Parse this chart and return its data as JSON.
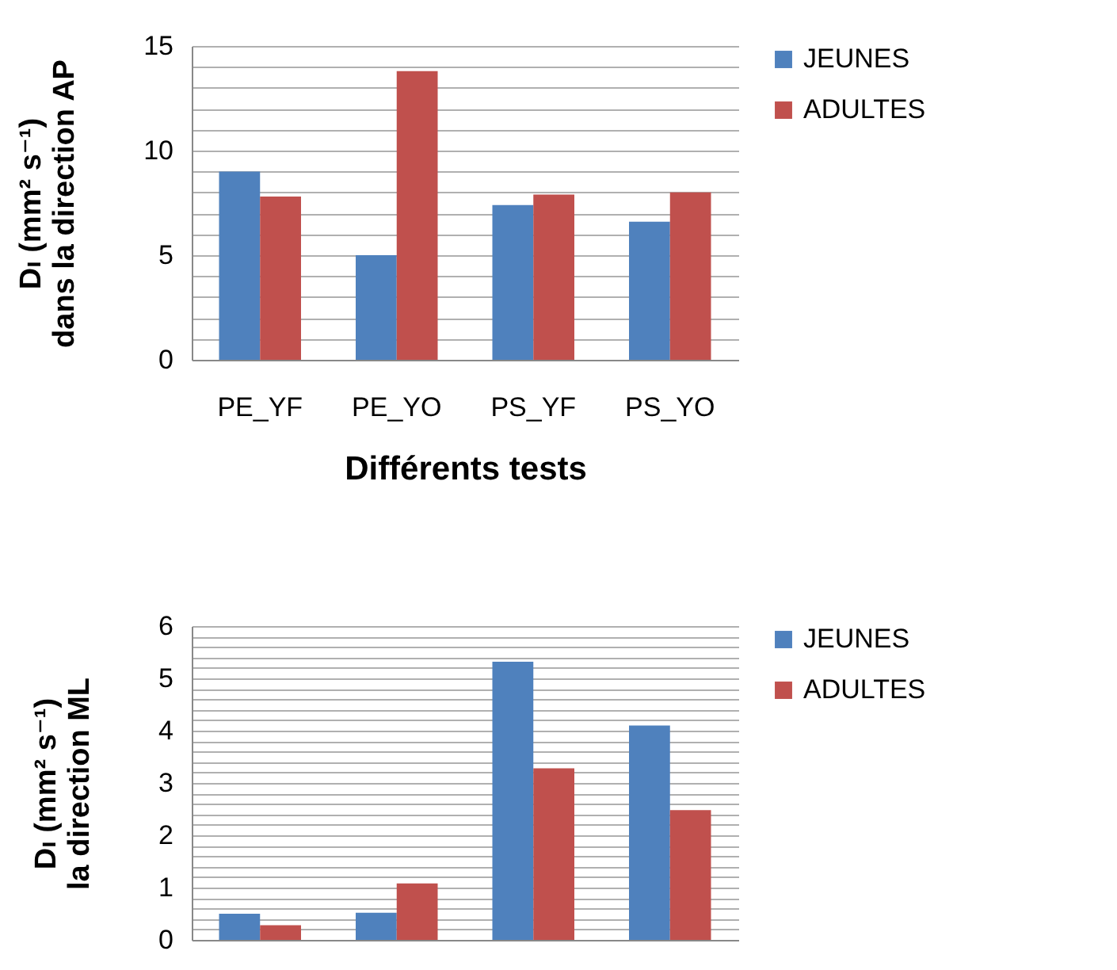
{
  "chart_data": [
    {
      "type": "bar",
      "xlabel": "Différents tests",
      "ylabel": "Dₗ (mm² s⁻¹)\ndans la direction AP",
      "categories": [
        "PE_YF",
        "PE_YO",
        "PS_YF",
        "PS_YO"
      ],
      "series": [
        {
          "name": "JEUNES",
          "color": "#4f81bd",
          "values": [
            9.0,
            5.0,
            7.4,
            6.6
          ]
        },
        {
          "name": "ADULTES",
          "color": "#c0504d",
          "values": [
            7.8,
            13.8,
            7.9,
            8.0
          ]
        }
      ],
      "ylim": [
        0,
        15
      ],
      "yticks": [
        0,
        {
          "value": 1,
          "label": null
        },
        {
          "value": 2,
          "label": null
        },
        {
          "value": 3,
          "label": null
        },
        {
          "value": 4,
          "label": null
        },
        5,
        {
          "value": 6,
          "label": null
        },
        {
          "value": 7,
          "label": null
        },
        {
          "value": 8,
          "label": null
        },
        {
          "value": 9,
          "label": null
        },
        10,
        {
          "value": 11,
          "label": null
        },
        {
          "value": 12,
          "label": null
        },
        {
          "value": 13,
          "label": null
        },
        {
          "value": 14,
          "label": null
        },
        15
      ],
      "grid": "y",
      "legend": "right"
    },
    {
      "type": "bar",
      "ylabel": "Dₗ (mm² s⁻¹)\nla direction ML",
      "categories": [
        null,
        null,
        null,
        null
      ],
      "series": [
        {
          "name": "JEUNES",
          "color": "#4f81bd",
          "values": [
            0.5,
            0.52,
            5.32,
            4.1
          ]
        },
        {
          "name": "ADULTES",
          "color": "#c0504d",
          "values": [
            0.28,
            1.08,
            3.28,
            2.48
          ]
        }
      ],
      "ylim": [
        0,
        6
      ],
      "yticks": [
        0,
        {
          "value": 0.2,
          "label": null
        },
        {
          "value": 0.4,
          "label": null
        },
        {
          "value": 0.6,
          "label": null
        },
        {
          "value": 0.8,
          "label": null
        },
        1,
        {
          "value": 1.2,
          "label": null
        },
        {
          "value": 1.4,
          "label": null
        },
        {
          "value": 1.6,
          "label": null
        },
        {
          "value": 1.8,
          "label": null
        },
        2,
        {
          "value": 2.2,
          "label": null
        },
        {
          "value": 2.4,
          "label": null
        },
        {
          "value": 2.6,
          "label": null
        },
        {
          "value": 2.8,
          "label": null
        },
        3,
        {
          "value": 3.2,
          "label": null
        },
        {
          "value": 3.4,
          "label": null
        },
        {
          "value": 3.6,
          "label": null
        },
        {
          "value": 3.8,
          "label": null
        },
        4,
        {
          "value": 4.2,
          "label": null
        },
        {
          "value": 4.4,
          "label": null
        },
        {
          "value": 4.6,
          "label": null
        },
        {
          "value": 4.8,
          "label": null
        },
        5,
        {
          "value": 5.2,
          "label": null
        },
        {
          "value": 5.4,
          "label": null
        },
        {
          "value": 5.6,
          "label": null
        },
        {
          "value": 5.8,
          "label": null
        },
        6
      ],
      "grid": "y",
      "legend": "right",
      "tick_labels": "y"
    }
  ]
}
